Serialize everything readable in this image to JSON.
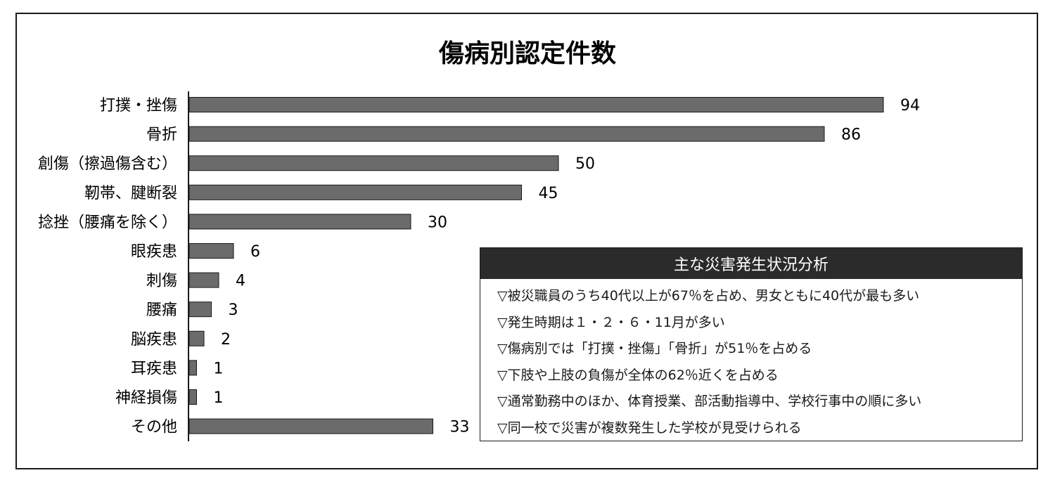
{
  "chart_data": {
    "type": "bar",
    "orientation": "horizontal",
    "title": "傷病別認定件数",
    "categories": [
      "打撲・挫傷",
      "骨折",
      "創傷（擦過傷含む）",
      "靭帯、腱断裂",
      "捻挫（腰痛を除く）",
      "眼疾患",
      "刺傷",
      "腰痛",
      "脳疾患",
      "耳疾患",
      "神経損傷",
      "その他"
    ],
    "values": [
      94,
      86,
      50,
      45,
      30,
      6,
      4,
      3,
      2,
      1,
      1,
      33
    ],
    "xlim": [
      0,
      94
    ],
    "grid": false,
    "bar_color": "#6b6b6b"
  },
  "summary_box": {
    "heading": "主な災害発生状況分析",
    "items": [
      "▽被災職員のうち40代以上が67％を占め、男女ともに40代が最も多い",
      "▽発生時期は１・２・６・11月が多い",
      "▽傷病別では「打撲・挫傷」「骨折」が51％を占める",
      "▽下肢や上肢の負傷が全体の62％近くを占める",
      "▽通常勤務中のほか、体育授業、部活動指導中、学校行事中の順に多い",
      "▽同一校で災害が複数発生した学校が見受けられる"
    ]
  }
}
